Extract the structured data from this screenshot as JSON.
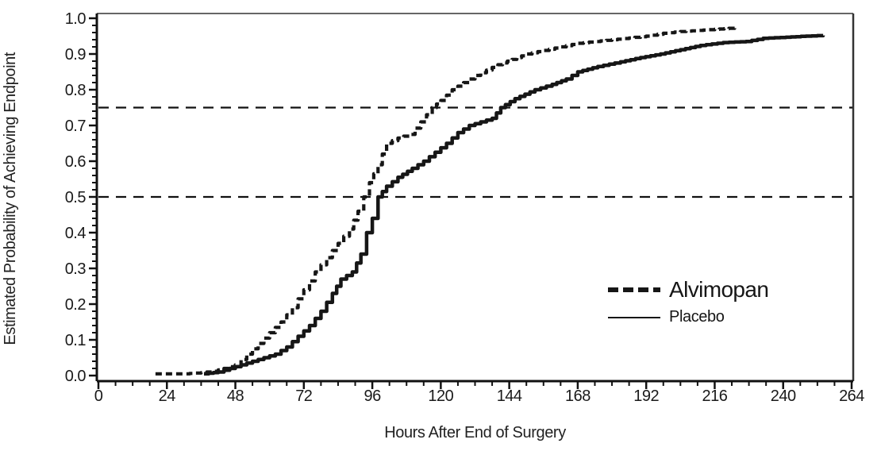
{
  "ink": "#161616",
  "chart_data": {
    "type": "line",
    "title": "",
    "xlabel": "Hours After End of Surgery",
    "ylabel": "Estimated Probability of Achieving Endpoint",
    "xlim": [
      0,
      264
    ],
    "ylim": [
      0.0,
      1.0
    ],
    "x_tick_labels": [
      0,
      24,
      48,
      72,
      96,
      120,
      144,
      168,
      192,
      216,
      240,
      264
    ],
    "y_tick_labels": [
      "0.0",
      "0.1",
      "0.2",
      "0.3",
      "0.4",
      "0.5",
      "0.6",
      "0.7",
      "0.8",
      "0.9",
      "1.0"
    ],
    "x_minor_tick_interval": 6,
    "y_minor_tick_interval": 0.02,
    "reference_lines_y": [
      0.5,
      0.75
    ],
    "grid": false,
    "legend_position": "right-middle",
    "series": [
      {
        "name": "Alvimopan",
        "line": "dashed",
        "points": [
          [
            20,
            0.005
          ],
          [
            30,
            0.005
          ],
          [
            36,
            0.008
          ],
          [
            40,
            0.012
          ],
          [
            44,
            0.02
          ],
          [
            48,
            0.03
          ],
          [
            52,
            0.06
          ],
          [
            56,
            0.09
          ],
          [
            60,
            0.12
          ],
          [
            64,
            0.15
          ],
          [
            68,
            0.19
          ],
          [
            72,
            0.24
          ],
          [
            76,
            0.29
          ],
          [
            80,
            0.33
          ],
          [
            84,
            0.37
          ],
          [
            88,
            0.41
          ],
          [
            91,
            0.46
          ],
          [
            93,
            0.5
          ],
          [
            95,
            0.54
          ],
          [
            98,
            0.59
          ],
          [
            101,
            0.65
          ],
          [
            105,
            0.665
          ],
          [
            109,
            0.675
          ],
          [
            113,
            0.71
          ],
          [
            117,
            0.75
          ],
          [
            120,
            0.77
          ],
          [
            124,
            0.8
          ],
          [
            128,
            0.82
          ],
          [
            132,
            0.84
          ],
          [
            136,
            0.855
          ],
          [
            140,
            0.87
          ],
          [
            145,
            0.885
          ],
          [
            150,
            0.9
          ],
          [
            156,
            0.91
          ],
          [
            162,
            0.92
          ],
          [
            168,
            0.93
          ],
          [
            174,
            0.935
          ],
          [
            180,
            0.94
          ],
          [
            186,
            0.945
          ],
          [
            192,
            0.95
          ],
          [
            198,
            0.958
          ],
          [
            204,
            0.963
          ],
          [
            210,
            0.966
          ],
          [
            216,
            0.969
          ],
          [
            221,
            0.972
          ],
          [
            223,
            0.978
          ]
        ]
      },
      {
        "name": "Placebo",
        "line": "solid",
        "points": [
          [
            37,
            0.005
          ],
          [
            42,
            0.01
          ],
          [
            46,
            0.02
          ],
          [
            50,
            0.03
          ],
          [
            54,
            0.04
          ],
          [
            58,
            0.05
          ],
          [
            62,
            0.06
          ],
          [
            66,
            0.08
          ],
          [
            70,
            0.11
          ],
          [
            74,
            0.14
          ],
          [
            78,
            0.18
          ],
          [
            82,
            0.23
          ],
          [
            85,
            0.27
          ],
          [
            89,
            0.29
          ],
          [
            92,
            0.34
          ],
          [
            94,
            0.4
          ],
          [
            96,
            0.44
          ],
          [
            98,
            0.5
          ],
          [
            101,
            0.53
          ],
          [
            105,
            0.555
          ],
          [
            110,
            0.58
          ],
          [
            114,
            0.6
          ],
          [
            118,
            0.625
          ],
          [
            122,
            0.65
          ],
          [
            126,
            0.68
          ],
          [
            130,
            0.7
          ],
          [
            134,
            0.71
          ],
          [
            138,
            0.72
          ],
          [
            141,
            0.75
          ],
          [
            146,
            0.775
          ],
          [
            153,
            0.8
          ],
          [
            159,
            0.815
          ],
          [
            164,
            0.83
          ],
          [
            168,
            0.85
          ],
          [
            175,
            0.865
          ],
          [
            183,
            0.878
          ],
          [
            190,
            0.89
          ],
          [
            197,
            0.9
          ],
          [
            204,
            0.912
          ],
          [
            211,
            0.924
          ],
          [
            219,
            0.932
          ],
          [
            227,
            0.935
          ],
          [
            233,
            0.944
          ],
          [
            241,
            0.947
          ],
          [
            248,
            0.95
          ],
          [
            254,
            0.952
          ]
        ]
      }
    ]
  }
}
